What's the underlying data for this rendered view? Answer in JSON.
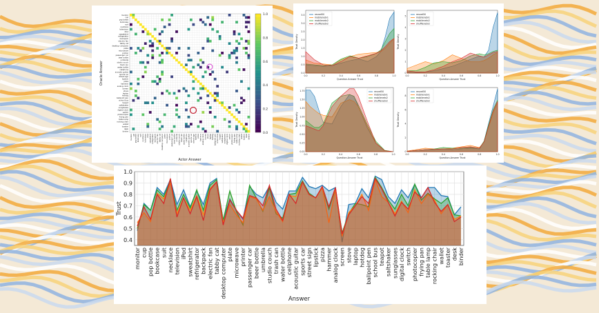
{
  "background": {
    "colors": [
      "#f2a93b",
      "#f7d27a",
      "#8fb3e0",
      "#c9d9ef",
      "#ffffff"
    ]
  },
  "chart_data": [
    {
      "type": "heatmap",
      "xlabel": "Actor Answer",
      "ylabel": "Oracle Answer",
      "colormap": "viridis",
      "colorbar_ticks": [
        "0.0",
        "0.2",
        "0.4",
        "0.6",
        "0.8",
        "1.0"
      ],
      "diagonal_value": 1.0,
      "categories": [
        "monitor",
        "cup",
        "pop bottle",
        "bookcase",
        "suit",
        "necklace",
        "television",
        "iPod",
        "sweatshirt",
        "refrigerator",
        "backpack",
        "electric fan",
        "tabby cat",
        "desktop computer",
        "plate",
        "microwave",
        "printer",
        "passenger car",
        "beer bottle",
        "umbrella",
        "studio couch",
        "trash can",
        "water bottle",
        "cellphone",
        "acoustic guitar",
        "sports car",
        "street sign",
        "lipstick",
        "pizza",
        "hammer",
        "analog clock",
        "screen",
        "stove",
        "laptop",
        "hotdog",
        "ballpoint pen",
        "school bus",
        "teapot",
        "saltshaker",
        "sunglasses",
        "digital clock",
        "switch",
        "photocopier",
        "frying pan",
        "table lamp",
        "rocking chair",
        "wallet",
        "toaster",
        "desk",
        "binder"
      ],
      "highlights": [
        {
          "color": "#d63fd0"
        },
        {
          "color": "#c0182b"
        }
      ]
    },
    {
      "type": "area",
      "xlabel": "Question-Answer Trust",
      "ylabel": "Trust Density",
      "xlim": [
        0,
        1
      ],
      "ylim": [
        0,
        3.8
      ],
      "xticks": [
        "0.0",
        "0.2",
        "0.4",
        "0.6",
        "0.8",
        "1.0"
      ],
      "yticks": [
        "0.0",
        "0.5",
        "1.0",
        "1.5",
        "2.0",
        "2.5",
        "3.0",
        "3.5"
      ],
      "legend": "top-left",
      "x": [
        0,
        0.1,
        0.2,
        0.3,
        0.4,
        0.5,
        0.6,
        0.7,
        0.8,
        0.85,
        0.9,
        0.95,
        1.0
      ],
      "series": [
        {
          "name": "resnet50",
          "color": "#1f77b4",
          "values": [
            0.5,
            0.45,
            0.4,
            0.45,
            0.6,
            0.75,
            0.85,
            0.7,
            1.0,
            1.3,
            2.2,
            3.3,
            3.7
          ]
        },
        {
          "name": "mobilenetv1",
          "color": "#ff7f0e",
          "values": [
            0.8,
            0.6,
            0.55,
            0.5,
            0.8,
            1.0,
            1.15,
            1.2,
            1.25,
            1.3,
            1.5,
            1.8,
            2.1
          ]
        },
        {
          "name": "mobilenetv2",
          "color": "#2ca02c",
          "values": [
            0.55,
            0.5,
            0.45,
            0.5,
            0.85,
            1.05,
            0.9,
            1.0,
            1.2,
            1.4,
            1.9,
            2.4,
            2.7
          ]
        },
        {
          "name": "shufflenetv2",
          "color": "#d62728",
          "values": [
            1.3,
            0.8,
            0.5,
            0.45,
            0.7,
            1.0,
            0.9,
            1.05,
            1.2,
            1.35,
            1.6,
            1.9,
            2.1
          ]
        }
      ]
    },
    {
      "type": "area",
      "xlabel": "Question-Answer Trust",
      "ylabel": "Trust Density",
      "xlim": [
        0,
        1
      ],
      "ylim": [
        0,
        5.5
      ],
      "xticks": [
        "0.0",
        "0.2",
        "0.4",
        "0.6",
        "0.8",
        "1.0"
      ],
      "yticks": [
        "0",
        "1",
        "2",
        "3",
        "4",
        "5"
      ],
      "legend": "top-left",
      "x": [
        0,
        0.1,
        0.2,
        0.3,
        0.4,
        0.5,
        0.6,
        0.7,
        0.8,
        0.85,
        0.9,
        0.95,
        1.0
      ],
      "series": [
        {
          "name": "resnet50",
          "color": "#1f77b4",
          "values": [
            0.1,
            0.05,
            0.1,
            0.2,
            0.4,
            0.6,
            0.9,
            1.2,
            1.5,
            1.4,
            2.0,
            4.0,
            5.3
          ]
        },
        {
          "name": "mobilenetv1",
          "color": "#ff7f0e",
          "values": [
            0.4,
            0.7,
            1.0,
            0.8,
            1.1,
            1.6,
            1.3,
            1.0,
            1.0,
            1.1,
            1.3,
            1.6,
            1.8
          ]
        },
        {
          "name": "mobilenetv2",
          "color": "#2ca02c",
          "values": [
            0.2,
            0.2,
            0.5,
            0.9,
            1.0,
            0.9,
            1.1,
            1.5,
            1.7,
            1.6,
            1.7,
            1.9,
            2.0
          ]
        },
        {
          "name": "shufflenetv2",
          "color": "#d62728",
          "values": [
            0.2,
            0.1,
            0.1,
            0.3,
            0.6,
            1.0,
            1.3,
            1.75,
            1.5,
            1.4,
            1.6,
            1.8,
            1.9
          ]
        }
      ]
    },
    {
      "type": "area",
      "xlabel": "Question-Answer Trust",
      "ylabel": "Trust Density",
      "xlim": [
        0,
        1
      ],
      "ylim": [
        0,
        1.85
      ],
      "xticks": [
        "0.0",
        "0.2",
        "0.4",
        "0.6",
        "0.8",
        "1.0"
      ],
      "yticks": [
        "0.00",
        "0.25",
        "0.50",
        "0.75",
        "1.00",
        "1.25",
        "1.50",
        "1.75"
      ],
      "legend": "top-right",
      "x": [
        0,
        0.05,
        0.1,
        0.15,
        0.2,
        0.3,
        0.4,
        0.5,
        0.55,
        0.6,
        0.7,
        0.8,
        0.9,
        1.0
      ],
      "series": [
        {
          "name": "resnet50",
          "color": "#1f77b4",
          "values": [
            1.78,
            1.78,
            1.6,
            1.2,
            0.85,
            0.8,
            1.3,
            1.65,
            1.6,
            1.3,
            0.7,
            0.25,
            0.03,
            0
          ]
        },
        {
          "name": "mobilenetv1",
          "color": "#ff7f0e",
          "values": [
            1.45,
            1.3,
            1.2,
            1.1,
            1.05,
            1.0,
            1.4,
            1.5,
            1.45,
            1.3,
            0.75,
            0.25,
            0.03,
            0
          ]
        },
        {
          "name": "mobilenetv2",
          "color": "#2ca02c",
          "values": [
            0.9,
            0.8,
            0.7,
            0.7,
            0.8,
            1.4,
            1.6,
            1.65,
            1.6,
            1.35,
            0.8,
            0.3,
            0.04,
            0
          ]
        },
        {
          "name": "shufflenetv2",
          "color": "#d62728",
          "values": [
            0.75,
            0.7,
            0.65,
            0.6,
            0.75,
            1.3,
            1.6,
            1.82,
            1.82,
            1.6,
            0.9,
            0.25,
            0.03,
            0
          ]
        }
      ]
    },
    {
      "type": "area",
      "xlabel": "Question-Answer Trust",
      "ylabel": "Trust Density",
      "xlim": [
        0,
        1
      ],
      "ylim": [
        0,
        9.2
      ],
      "xticks": [
        "0.0",
        "0.2",
        "0.4",
        "0.6",
        "0.8",
        "1.0"
      ],
      "yticks": [
        "0",
        "2",
        "4",
        "6",
        "8"
      ],
      "legend": "top-left",
      "x": [
        0,
        0.1,
        0.2,
        0.3,
        0.4,
        0.5,
        0.6,
        0.7,
        0.8,
        0.85,
        0.9,
        0.95,
        1.0
      ],
      "series": [
        {
          "name": "resnet50",
          "color": "#1f77b4",
          "values": [
            0.05,
            0.2,
            0.3,
            0.3,
            0.4,
            0.3,
            0.4,
            0.5,
            0.4,
            1.5,
            4.0,
            6.5,
            9.0
          ]
        },
        {
          "name": "mobilenetv1",
          "color": "#ff7f0e",
          "values": [
            0.1,
            0.3,
            0.5,
            0.4,
            0.4,
            0.5,
            0.7,
            0.9,
            0.6,
            1.4,
            3.5,
            5.5,
            7.0
          ]
        },
        {
          "name": "mobilenetv2",
          "color": "#2ca02c",
          "values": [
            0.05,
            0.2,
            0.3,
            0.4,
            0.6,
            0.5,
            0.5,
            0.6,
            0.5,
            1.5,
            3.8,
            6.0,
            7.4
          ]
        },
        {
          "name": "shufflenetv2",
          "color": "#d62728",
          "values": [
            0.05,
            0.2,
            0.3,
            0.35,
            0.4,
            0.4,
            0.6,
            0.7,
            0.5,
            1.4,
            3.6,
            5.8,
            7.2
          ]
        }
      ]
    },
    {
      "type": "area",
      "xlabel": "Answer",
      "ylabel": "Trust",
      "ylim": [
        0.35,
        1.0
      ],
      "yticks": [
        "0.4",
        "0.5",
        "0.6",
        "0.7",
        "0.8",
        "0.9",
        "1.0"
      ],
      "grid": true,
      "categories": [
        "monitor",
        "cup",
        "pop bottle",
        "bookcase",
        "suit",
        "necklace",
        "television",
        "iPod",
        "sweatshirt",
        "refrigerator",
        "backpack",
        "electric fan",
        "tabby cat",
        "desktop computer",
        "plate",
        "microwave",
        "printer",
        "passenger car",
        "beer bottle",
        "umbrella",
        "studio couch",
        "trash can",
        "water bottle",
        "cellphone",
        "acoustic guitar",
        "sports car",
        "street sign",
        "lipstick",
        "pizza",
        "hammer",
        "analog clock",
        "screen",
        "stove",
        "laptop",
        "hotdog",
        "ballpoint pen",
        "school bus",
        "teapot",
        "saltshaker",
        "sunglasses",
        "digital clock",
        "switch",
        "photocopier",
        "frying pan",
        "table lamp",
        "rocking chair",
        "wallet",
        "toaster",
        "desk",
        "binder"
      ],
      "series": [
        {
          "color": "#1f77b4",
          "values": [
            0.48,
            0.72,
            0.66,
            0.86,
            0.8,
            0.93,
            0.71,
            0.84,
            0.69,
            0.83,
            0.71,
            0.9,
            0.94,
            0.57,
            0.76,
            0.66,
            0.58,
            0.87,
            0.8,
            0.77,
            0.87,
            0.73,
            0.67,
            0.83,
            0.83,
            0.95,
            0.87,
            0.85,
            0.88,
            0.83,
            0.86,
            0.38,
            0.71,
            0.72,
            0.85,
            0.77,
            0.96,
            0.93,
            0.78,
            0.72,
            0.84,
            0.77,
            0.89,
            0.77,
            0.86,
            0.86,
            0.79,
            0.78,
            0.62,
            0.69
          ]
        },
        {
          "color": "#2ca02c",
          "values": [
            0.5,
            0.71,
            0.66,
            0.84,
            0.78,
            0.92,
            0.66,
            0.8,
            0.68,
            0.84,
            0.66,
            0.88,
            0.93,
            0.57,
            0.83,
            0.65,
            0.53,
            0.88,
            0.77,
            0.65,
            0.86,
            0.63,
            0.59,
            0.8,
            0.81,
            0.92,
            0.81,
            0.77,
            0.86,
            0.67,
            0.85,
            0.46,
            0.63,
            0.72,
            0.71,
            0.69,
            0.95,
            0.86,
            0.75,
            0.67,
            0.8,
            0.7,
            0.89,
            0.75,
            0.81,
            0.76,
            0.72,
            0.77,
            0.62,
            0.61
          ]
        },
        {
          "color": "#ff7f0e",
          "values": [
            0.55,
            0.64,
            0.56,
            0.81,
            0.76,
            0.9,
            0.63,
            0.77,
            0.66,
            0.79,
            0.62,
            0.85,
            0.91,
            0.55,
            0.71,
            0.62,
            0.55,
            0.78,
            0.76,
            0.66,
            0.78,
            0.65,
            0.56,
            0.79,
            0.78,
            0.91,
            0.8,
            0.77,
            0.86,
            0.55,
            0.84,
            0.43,
            0.64,
            0.7,
            0.8,
            0.66,
            0.93,
            0.78,
            0.73,
            0.63,
            0.74,
            0.64,
            0.84,
            0.72,
            0.8,
            0.75,
            0.63,
            0.71,
            0.58,
            0.61
          ]
        },
        {
          "color": "#d62728",
          "values": [
            0.52,
            0.69,
            0.58,
            0.8,
            0.72,
            0.94,
            0.6,
            0.77,
            0.63,
            0.78,
            0.57,
            0.84,
            0.91,
            0.53,
            0.75,
            0.66,
            0.59,
            0.79,
            0.77,
            0.7,
            0.88,
            0.67,
            0.57,
            0.8,
            0.72,
            0.91,
            0.8,
            0.77,
            0.87,
            0.69,
            0.86,
            0.45,
            0.62,
            0.7,
            0.78,
            0.72,
            0.94,
            0.85,
            0.73,
            0.61,
            0.73,
            0.67,
            0.82,
            0.77,
            0.86,
            0.73,
            0.65,
            0.71,
            0.56,
            0.6
          ]
        }
      ]
    }
  ]
}
